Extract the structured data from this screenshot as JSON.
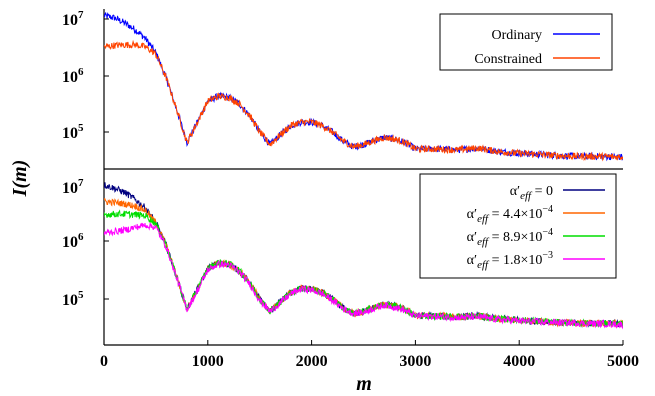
{
  "chart_data": [
    {
      "type": "line",
      "panel": "top",
      "y_scale": "log",
      "ylim": [
        20000,
        20000000
      ],
      "xlim": [
        0,
        5000
      ],
      "y_ticks": [
        {
          "exp": "7"
        },
        {
          "exp": "6"
        },
        {
          "exp": "5"
        }
      ],
      "legend_position": "top-right",
      "series": [
        {
          "name": "Ordinary",
          "color": "#0000ff",
          "x": [
            0,
            100,
            200,
            300,
            400,
            500,
            600,
            700,
            800,
            900,
            1000,
            1100,
            1200,
            1300,
            1400,
            1500,
            1600,
            1700,
            1800,
            1900,
            2000,
            2100,
            2200,
            2300,
            2400,
            2500,
            2600,
            2700,
            2800,
            2900,
            3000,
            3200,
            3400,
            3600,
            3800,
            4000,
            4200,
            4400,
            4600,
            4800,
            5000
          ],
          "y": [
            11500000,
            10500000,
            8500000,
            6500000,
            4500000,
            2500000,
            900000,
            250000,
            65000,
            150000,
            350000,
            430000,
            410000,
            320000,
            200000,
            100000,
            60000,
            90000,
            130000,
            150000,
            150000,
            130000,
            100000,
            70000,
            55000,
            60000,
            70000,
            80000,
            75000,
            65000,
            50000,
            50000,
            48000,
            52000,
            45000,
            42000,
            40000,
            38000,
            37000,
            37000,
            36000
          ]
        },
        {
          "name": "Constrained",
          "color": "#ff4400",
          "x": [
            0,
            100,
            200,
            300,
            400,
            500,
            600,
            700,
            800,
            900,
            1000,
            1100,
            1200,
            1300,
            1400,
            1500,
            1600,
            1700,
            1800,
            1900,
            2000,
            2100,
            2200,
            2300,
            2400,
            2500,
            2600,
            2700,
            2800,
            2900,
            3000,
            3200,
            3400,
            3600,
            3800,
            4000,
            4200,
            4400,
            4600,
            4800,
            5000
          ],
          "y": [
            3200000,
            3400000,
            3500000,
            3500000,
            3200000,
            2400000,
            900000,
            250000,
            65000,
            150000,
            350000,
            430000,
            410000,
            320000,
            200000,
            100000,
            60000,
            90000,
            130000,
            150000,
            150000,
            130000,
            100000,
            70000,
            55000,
            60000,
            70000,
            80000,
            75000,
            65000,
            50000,
            50000,
            48000,
            52000,
            45000,
            42000,
            40000,
            38000,
            37000,
            37000,
            36000
          ]
        }
      ]
    },
    {
      "type": "line",
      "panel": "bottom",
      "y_scale": "log",
      "ylim": [
        20000,
        20000000
      ],
      "xlim": [
        0,
        5000
      ],
      "x_ticks": [
        "0",
        "1000",
        "2000",
        "3000",
        "4000",
        "5000"
      ],
      "y_ticks": [
        {
          "exp": "7"
        },
        {
          "exp": "6"
        },
        {
          "exp": "5"
        }
      ],
      "legend_position": "top-right",
      "series": [
        {
          "name_prefix": "α′",
          "name_sub": "eff",
          "name_suffix": " = 0",
          "color": "#000080",
          "x": [
            0,
            100,
            200,
            300,
            400,
            500,
            600,
            700,
            800,
            900,
            1000,
            1100,
            1200,
            1300,
            1400,
            1500,
            1600,
            1700,
            1800,
            1900,
            2000,
            2100,
            2200,
            2300,
            2400,
            2500,
            2600,
            2700,
            2800,
            2900,
            3000,
            3200,
            3400,
            3600,
            3800,
            4000,
            4200,
            4400,
            4600,
            4800,
            5000
          ],
          "y": [
            11000000,
            9500000,
            8000000,
            6000000,
            4200000,
            2300000,
            900000,
            250000,
            65000,
            150000,
            350000,
            440000,
            420000,
            320000,
            200000,
            100000,
            60000,
            90000,
            130000,
            155000,
            150000,
            130000,
            100000,
            70000,
            55000,
            60000,
            70000,
            80000,
            75000,
            65000,
            50000,
            50000,
            48000,
            50000,
            44000,
            42000,
            40000,
            38000,
            37000,
            37000,
            36000
          ]
        },
        {
          "name_prefix": "α′",
          "name_sub": "eff",
          "name_suffix": " = 4.4×10",
          "name_sup": "−4",
          "color": "#ff6600",
          "x": [
            0,
            100,
            200,
            300,
            400,
            500,
            600,
            700,
            800,
            900,
            1000,
            1100,
            1200,
            1300,
            1400,
            1500,
            1600,
            1700,
            1800,
            1900,
            2000,
            2100,
            2200,
            2300,
            2400,
            2500,
            2600,
            2700,
            2800,
            2900,
            3000,
            3200,
            3400,
            3600,
            3800,
            4000,
            4200,
            4400,
            4600,
            4800,
            5000
          ],
          "y": [
            5500000,
            5300000,
            5000000,
            4600000,
            3800000,
            2300000,
            900000,
            250000,
            65000,
            150000,
            350000,
            440000,
            420000,
            320000,
            200000,
            100000,
            60000,
            90000,
            130000,
            155000,
            150000,
            130000,
            100000,
            70000,
            55000,
            60000,
            70000,
            80000,
            75000,
            65000,
            50000,
            50000,
            48000,
            50000,
            44000,
            42000,
            40000,
            38000,
            37000,
            37000,
            36000
          ]
        },
        {
          "name_prefix": "α′",
          "name_sub": "eff",
          "name_suffix": " = 8.9×10",
          "name_sup": "−4",
          "color": "#00dd00",
          "x": [
            0,
            100,
            200,
            300,
            400,
            500,
            600,
            700,
            800,
            900,
            1000,
            1100,
            1200,
            1300,
            1400,
            1500,
            1600,
            1700,
            1800,
            1900,
            2000,
            2100,
            2200,
            2300,
            2400,
            2500,
            2600,
            2700,
            2800,
            2900,
            3000,
            3200,
            3400,
            3600,
            3800,
            4000,
            4200,
            4400,
            4600,
            4800,
            5000
          ],
          "y": [
            3200000,
            3300000,
            3300000,
            3200000,
            3100000,
            2200000,
            900000,
            250000,
            65000,
            150000,
            350000,
            450000,
            430000,
            330000,
            200000,
            100000,
            60000,
            90000,
            130000,
            155000,
            150000,
            130000,
            100000,
            70000,
            55000,
            60000,
            70000,
            80000,
            75000,
            65000,
            50000,
            50000,
            48000,
            50000,
            44000,
            42000,
            40000,
            38000,
            37000,
            37000,
            36000
          ]
        },
        {
          "name_prefix": "α′",
          "name_sub": "eff",
          "name_suffix": " = 1.8×10",
          "name_sup": "−3",
          "color": "#ff00ff",
          "x": [
            0,
            100,
            200,
            300,
            400,
            500,
            600,
            700,
            800,
            900,
            1000,
            1100,
            1200,
            1300,
            1400,
            1500,
            1600,
            1700,
            1800,
            1900,
            2000,
            2100,
            2200,
            2300,
            2400,
            2500,
            2600,
            2700,
            2800,
            2900,
            3000,
            3200,
            3400,
            3600,
            3800,
            4000,
            4200,
            4400,
            4600,
            4800,
            5000
          ],
          "y": [
            1500000,
            1600000,
            1700000,
            1900000,
            2100000,
            1900000,
            850000,
            240000,
            65000,
            140000,
            330000,
            420000,
            410000,
            310000,
            190000,
            95000,
            60000,
            85000,
            125000,
            150000,
            145000,
            125000,
            95000,
            68000,
            55000,
            58000,
            68000,
            78000,
            72000,
            62000,
            50000,
            49000,
            47000,
            48000,
            43000,
            41000,
            39000,
            38000,
            37000,
            36000,
            35000
          ]
        }
      ]
    }
  ],
  "axes": {
    "xlabel": "m",
    "ylabel": "I(m)"
  }
}
